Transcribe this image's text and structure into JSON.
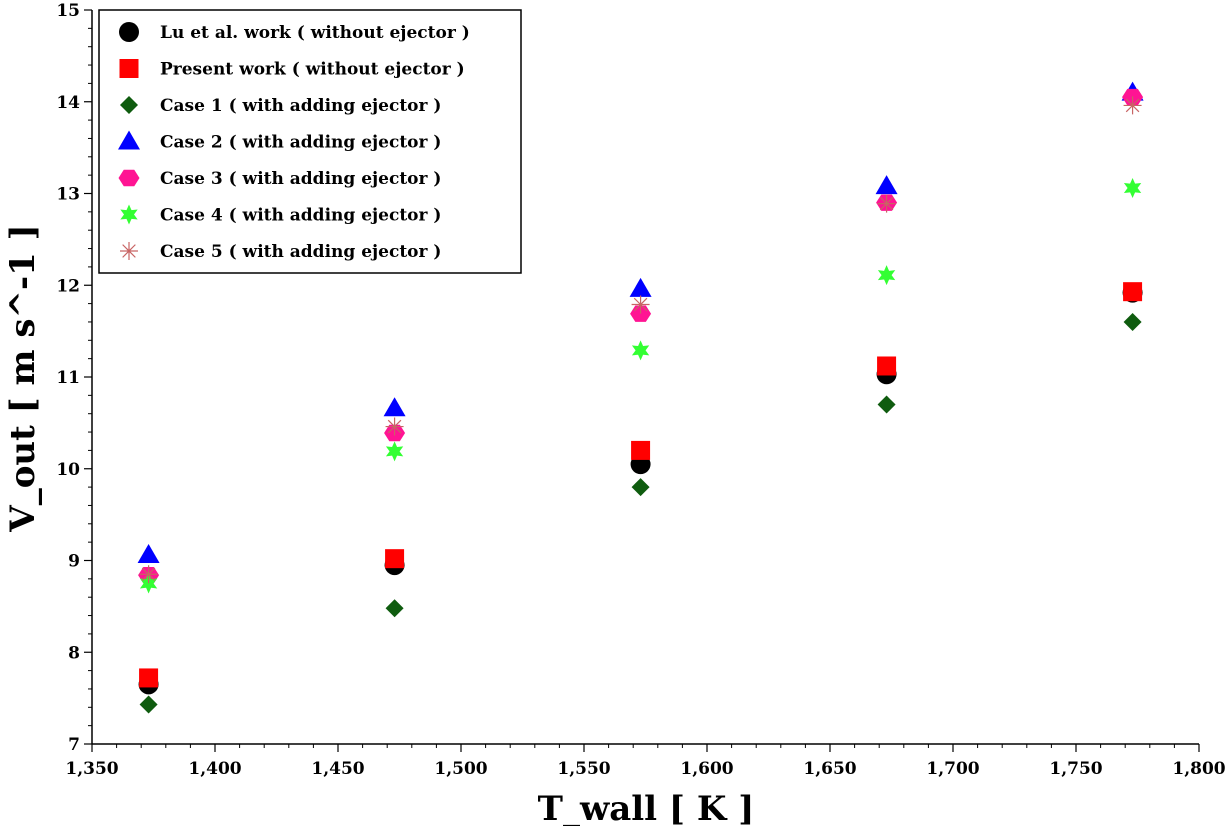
{
  "chart_data": {
    "type": "scatter",
    "title": "",
    "xlabel": "T_wall [ K ]",
    "ylabel": "V_out [ m s^-1 ]",
    "xlim": [
      1350,
      1800
    ],
    "ylim": [
      7,
      15
    ],
    "x_ticks": [
      "1,350",
      "1,400",
      "1,450",
      "1,500",
      "1,550",
      "1,600",
      "1,650",
      "1,700",
      "1,750",
      "1,800"
    ],
    "y_ticks": [
      "7",
      "8",
      "9",
      "10",
      "11",
      "12",
      "13",
      "14",
      "15"
    ],
    "grid": false,
    "legend_position": "top-left",
    "x": [
      1373,
      1473,
      1573,
      1673,
      1773
    ],
    "series": [
      {
        "name": "Lu et al. work ( without ejector )",
        "marker": "circle",
        "color": "#000000",
        "values": [
          7.65,
          8.95,
          10.05,
          11.03,
          11.92
        ]
      },
      {
        "name": "Present work ( without ejector )",
        "marker": "square",
        "color": "#ff0000",
        "values": [
          7.72,
          9.02,
          10.2,
          11.12,
          11.93
        ]
      },
      {
        "name": "Case 1 ( with adding ejector )",
        "marker": "diamond",
        "color": "#0f5c0f",
        "values": [
          7.43,
          8.48,
          9.8,
          10.7,
          11.6
        ]
      },
      {
        "name": "Case 2 ( with adding ejector )",
        "marker": "triangle",
        "color": "#0000ff",
        "values": [
          9.06,
          10.66,
          11.96,
          13.08,
          14.1
        ]
      },
      {
        "name": "Case 3 ( with adding ejector )",
        "marker": "hexagon",
        "color": "#ff1493",
        "values": [
          8.84,
          10.39,
          11.69,
          12.9,
          14.05
        ]
      },
      {
        "name": "Case 4 ( with adding ejector )",
        "marker": "star",
        "color": "#33ff33",
        "values": [
          8.75,
          10.19,
          11.29,
          12.11,
          13.06
        ]
      },
      {
        "name": "Case 5 ( with adding ejector )",
        "marker": "asterisk",
        "color": "#c86464",
        "values": [
          8.85,
          10.46,
          11.79,
          12.89,
          13.96
        ]
      }
    ]
  }
}
